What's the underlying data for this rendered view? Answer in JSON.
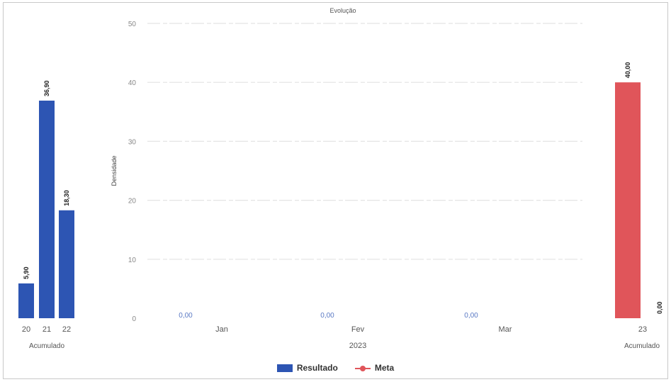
{
  "chart_data": {
    "type": "bar",
    "title": "Evolução",
    "ylabel": "Densidade",
    "ylim": [
      0,
      50
    ],
    "yticks": [
      0,
      10,
      20,
      30,
      40,
      50
    ],
    "grid": true,
    "colors": {
      "resultado": "#2d55b3",
      "meta": "#e0555a"
    },
    "left_panel": {
      "categories": [
        "20",
        "21",
        "22"
      ],
      "group_label": "Acumulado",
      "values": [
        5.9,
        36.9,
        18.3
      ],
      "labels": [
        "5,90",
        "36,90",
        "18,30"
      ]
    },
    "main_panel": {
      "categories": [
        "Jan",
        "Fev",
        "Mar"
      ],
      "group_label": "2023",
      "values": [
        0,
        0,
        0
      ],
      "labels": [
        "0,00",
        "0,00",
        "0,00"
      ]
    },
    "right_panel": {
      "categories": [
        "23"
      ],
      "group_label": "Acumulado",
      "meta_value": 40.0,
      "meta_label": "40,00",
      "resultado_value": 0,
      "resultado_label": "0,00"
    },
    "legend": {
      "position": "bottom",
      "items": [
        {
          "name": "Resultado",
          "marker": "bar",
          "color": "#2d55b3"
        },
        {
          "name": "Meta",
          "marker": "line",
          "color": "#e0555a"
        }
      ]
    }
  }
}
